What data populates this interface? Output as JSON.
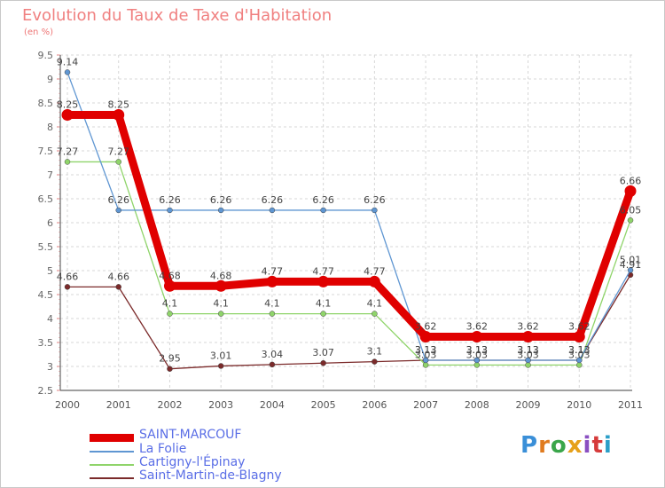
{
  "title": "Evolution du Taux de Taxe d'Habitation",
  "subtitle": "(en %)",
  "logo": {
    "text": "Proxiti",
    "colors": [
      "#3a8fd8",
      "#e07b1f",
      "#3aa64a",
      "#e6a11b",
      "#8a4fc1",
      "#d63b3b",
      "#2b9fc8"
    ]
  },
  "chart_data": {
    "type": "line",
    "x": [
      "2000",
      "2001",
      "2002",
      "2003",
      "2004",
      "2005",
      "2006",
      "2007",
      "2008",
      "2009",
      "2010",
      "2011"
    ],
    "ylim": [
      2.5,
      9.5
    ],
    "yticks": [
      "2.5",
      "3",
      "3.5",
      "4",
      "4.5",
      "5",
      "5.5",
      "6",
      "6.5",
      "7",
      "7.5",
      "8",
      "8.5",
      "9",
      "9.5"
    ],
    "grid": true,
    "legend_position": "bottom-left",
    "series": [
      {
        "name": "SAINT-MARCOUF",
        "color": "#e00000",
        "values": [
          8.25,
          8.25,
          4.68,
          4.68,
          4.77,
          4.77,
          4.77,
          3.62,
          3.62,
          3.62,
          3.62,
          6.66
        ],
        "labels": [
          "8.25",
          "8.25",
          "4.68",
          "4.68",
          "4.77",
          "4.77",
          "4.77",
          "3.62",
          "3.62",
          "3.62",
          "3.62",
          "6.66"
        ]
      },
      {
        "name": "La Folie",
        "color": "#5f96d2",
        "values": [
          9.14,
          6.26,
          6.26,
          6.26,
          6.26,
          6.26,
          6.26,
          3.13,
          3.13,
          3.13,
          3.13,
          5.01
        ],
        "labels": [
          "9.14",
          "6.26",
          "6.26",
          "6.26",
          "6.26",
          "6.26",
          "6.26",
          "3.13",
          "3.13",
          "3.13",
          "3.13",
          "5.01"
        ]
      },
      {
        "name": "Cartigny-l'Épinay",
        "color": "#8fd46a",
        "values": [
          7.27,
          7.27,
          4.1,
          4.1,
          4.1,
          4.1,
          4.1,
          3.03,
          3.03,
          3.03,
          3.03,
          6.05
        ],
        "labels": [
          "7.27",
          "7.27",
          "4.1",
          "4.1",
          "4.1",
          "4.1",
          "4.1",
          "3.03",
          "3.03",
          "3.03",
          "3.03",
          "6.05"
        ]
      },
      {
        "name": "Saint-Martin-de-Blagny",
        "color": "#7b2a2a",
        "values": [
          4.66,
          4.66,
          2.95,
          3.01,
          3.04,
          3.07,
          3.1,
          3.13,
          3.13,
          3.13,
          3.13,
          4.91
        ],
        "labels": [
          "4.66",
          "4.66",
          "2.95",
          "3.01",
          "3.04",
          "3.07",
          "3.1",
          "3.13",
          "3.13",
          "3.13",
          "3.13",
          "4.91"
        ]
      }
    ]
  }
}
